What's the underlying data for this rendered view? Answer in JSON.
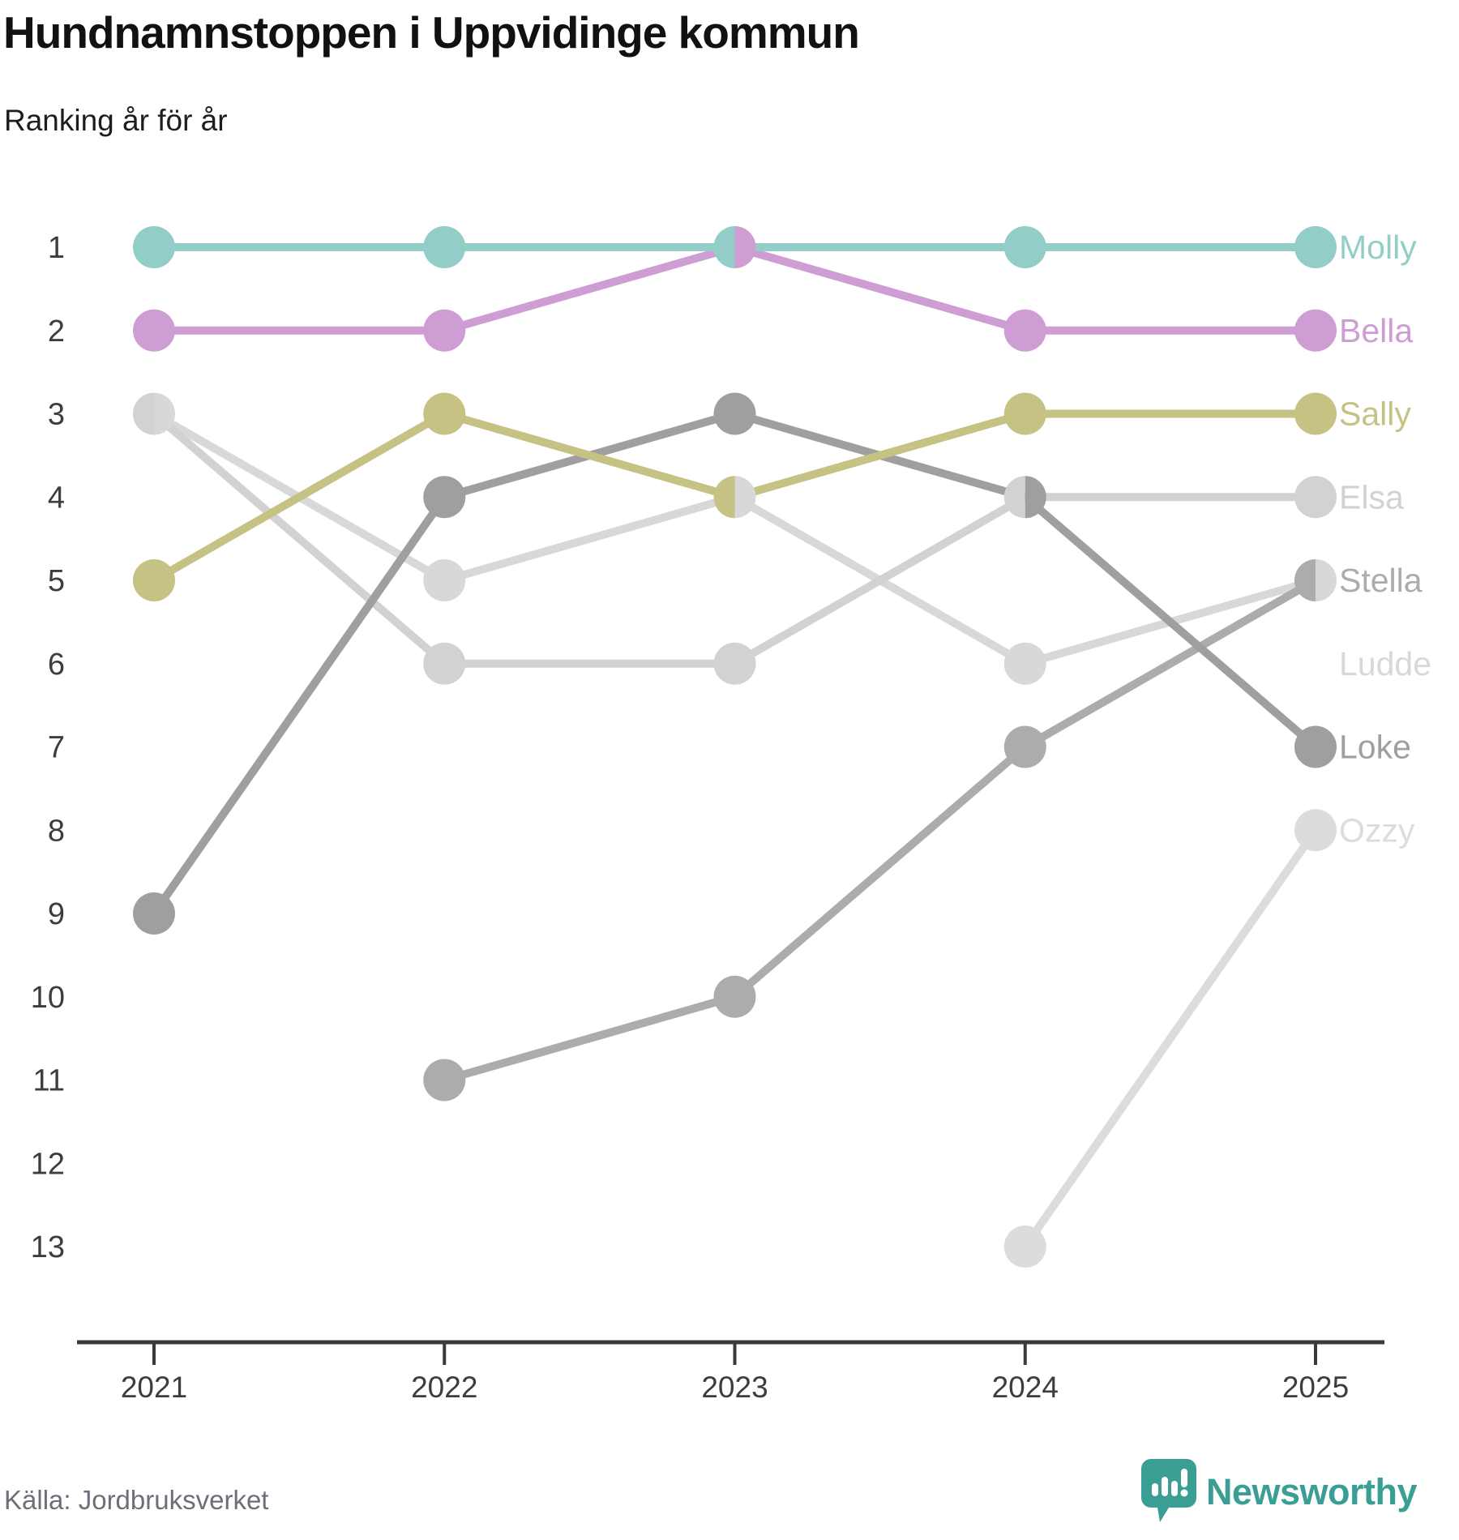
{
  "header": {
    "title": "Hundnamnstoppen i Uppvidinge kommun",
    "subtitle": "Ranking år för år"
  },
  "chart_data": {
    "type": "line",
    "variant": "bump-ranking",
    "title": "Hundnamnstoppen i Uppvidinge kommun",
    "subtitle": "Ranking år för år",
    "x": [
      "2021",
      "2022",
      "2023",
      "2024",
      "2025"
    ],
    "ylabel": "",
    "xlabel": "",
    "y_axis": {
      "min_rank": 1,
      "max_rank": 13,
      "inverted": true,
      "tick_labels": [
        "1",
        "2",
        "3",
        "4",
        "5",
        "6",
        "7",
        "8",
        "9",
        "10",
        "11",
        "12",
        "13"
      ]
    },
    "grid": false,
    "legend_position": "right-edge-labels",
    "series": [
      {
        "name": "Molly",
        "color": "#93cdc8",
        "values": [
          1,
          1,
          1,
          1,
          1
        ]
      },
      {
        "name": "Bella",
        "color": "#cd9dd4",
        "values": [
          2,
          2,
          1,
          2,
          2
        ]
      },
      {
        "name": "Sally",
        "color": "#c6c283",
        "values": [
          5,
          3,
          4,
          3,
          3
        ]
      },
      {
        "name": "Elsa",
        "color": "#d2d2d2",
        "values": [
          3,
          6,
          6,
          4,
          4
        ]
      },
      {
        "name": "Stella",
        "color": "#acacac",
        "values": [
          null,
          11,
          10,
          7,
          5
        ]
      },
      {
        "name": "Ludde",
        "color": "#d8d8d8",
        "values": [
          3,
          5,
          4,
          6,
          5
        ]
      },
      {
        "name": "Loke",
        "color": "#9f9f9f",
        "values": [
          9,
          4,
          3,
          4,
          7
        ]
      },
      {
        "name": "Ozzy",
        "color": "#dcdcdc",
        "values": [
          null,
          null,
          null,
          13,
          8
        ]
      }
    ],
    "ties_note": "equal ranks in same year drawn as half/half dots"
  },
  "footer": {
    "source": "Källa: Jordbruksverket",
    "brand": "Newsworthy"
  },
  "colors": {
    "brand_teal": "#3a9e94",
    "axis_line": "#3a3a3a",
    "axis_text": "#3d3d3d",
    "title_text": "#111111",
    "source_text": "#6e6e78"
  }
}
